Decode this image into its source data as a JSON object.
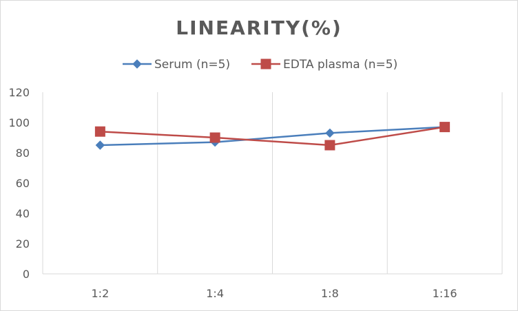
{
  "chart_data": {
    "type": "line",
    "title": "LINEARITY(%)",
    "xlabel": "",
    "ylabel": "",
    "categories": [
      "1:2",
      "1:4",
      "1:8",
      "1:16"
    ],
    "ylim": [
      0,
      120
    ],
    "yticks": [
      0,
      20,
      40,
      60,
      80,
      100,
      120
    ],
    "grid": "vertical",
    "legend": "top-center",
    "series": [
      {
        "name": "Serum (n=5)",
        "values": [
          85,
          87,
          93,
          97
        ],
        "color": "#4a7ebb",
        "marker": "diamond"
      },
      {
        "name": "EDTA plasma (n=5)",
        "values": [
          94,
          90,
          85,
          97
        ],
        "color": "#be4b48",
        "marker": "square"
      }
    ]
  }
}
